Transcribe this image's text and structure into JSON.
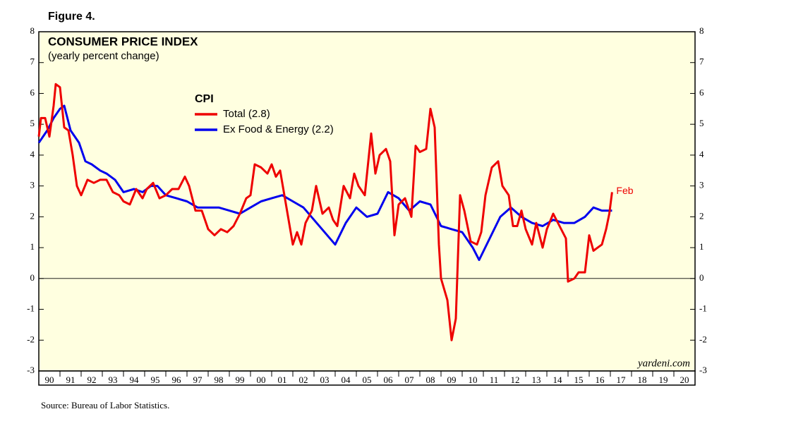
{
  "figure_label": "Figure 4.",
  "chart_data": {
    "type": "line",
    "title": "CONSUMER PRICE INDEX",
    "subtitle": "(yearly percent change)",
    "legend_title": "CPI",
    "annotation": "Feb",
    "watermark": "yardeni.com",
    "source": "Source: Bureau of Labor Statistics.",
    "xlim": [
      1990,
      2021
    ],
    "xticks": [
      {
        "value": 1990,
        "label": "90"
      },
      {
        "value": 1991,
        "label": "91"
      },
      {
        "value": 1992,
        "label": "92"
      },
      {
        "value": 1993,
        "label": "93"
      },
      {
        "value": 1994,
        "label": "94"
      },
      {
        "value": 1995,
        "label": "95"
      },
      {
        "value": 1996,
        "label": "96"
      },
      {
        "value": 1997,
        "label": "97"
      },
      {
        "value": 1998,
        "label": "98"
      },
      {
        "value": 1999,
        "label": "99"
      },
      {
        "value": 2000,
        "label": "00"
      },
      {
        "value": 2001,
        "label": "01"
      },
      {
        "value": 2002,
        "label": "02"
      },
      {
        "value": 2003,
        "label": "03"
      },
      {
        "value": 2004,
        "label": "04"
      },
      {
        "value": 2005,
        "label": "05"
      },
      {
        "value": 2006,
        "label": "06"
      },
      {
        "value": 2007,
        "label": "07"
      },
      {
        "value": 2008,
        "label": "08"
      },
      {
        "value": 2009,
        "label": "09"
      },
      {
        "value": 2010,
        "label": "10"
      },
      {
        "value": 2011,
        "label": "11"
      },
      {
        "value": 2012,
        "label": "12"
      },
      {
        "value": 2013,
        "label": "13"
      },
      {
        "value": 2014,
        "label": "14"
      },
      {
        "value": 2015,
        "label": "15"
      },
      {
        "value": 2016,
        "label": "16"
      },
      {
        "value": 2017,
        "label": "17"
      },
      {
        "value": 2018,
        "label": "18"
      },
      {
        "value": 2019,
        "label": "19"
      },
      {
        "value": 2020,
        "label": "20"
      }
    ],
    "ylim": [
      -3,
      8
    ],
    "yticks": [
      -3,
      -2,
      -1,
      0,
      1,
      2,
      3,
      4,
      5,
      6,
      7,
      8
    ],
    "series": [
      {
        "name": "Total (2.8)",
        "color": "#ee0000",
        "x": [
          1990.0,
          1990.1,
          1990.3,
          1990.5,
          1990.7,
          1990.8,
          1991.0,
          1991.2,
          1991.4,
          1991.6,
          1991.8,
          1992.0,
          1992.3,
          1992.6,
          1992.9,
          1993.2,
          1993.5,
          1993.8,
          1994.0,
          1994.3,
          1994.6,
          1994.9,
          1995.1,
          1995.4,
          1995.7,
          1996.0,
          1996.3,
          1996.6,
          1996.9,
          1997.1,
          1997.4,
          1997.7,
          1998.0,
          1998.3,
          1998.6,
          1998.9,
          1999.2,
          1999.5,
          1999.8,
          2000.0,
          2000.2,
          2000.5,
          2000.8,
          2001.0,
          2001.2,
          2001.4,
          2001.6,
          2001.8,
          2002.0,
          2002.2,
          2002.4,
          2002.6,
          2002.9,
          2003.1,
          2003.4,
          2003.7,
          2003.9,
          2004.1,
          2004.4,
          2004.7,
          2004.9,
          2005.1,
          2005.4,
          2005.7,
          2005.9,
          2006.1,
          2006.4,
          2006.6,
          2006.8,
          2007.0,
          2007.3,
          2007.6,
          2007.8,
          2008.0,
          2008.3,
          2008.5,
          2008.7,
          2008.9,
          2009.0,
          2009.3,
          2009.5,
          2009.7,
          2009.9,
          2010.1,
          2010.4,
          2010.7,
          2010.9,
          2011.1,
          2011.4,
          2011.7,
          2011.9,
          2012.2,
          2012.4,
          2012.6,
          2012.8,
          2013.0,
          2013.3,
          2013.5,
          2013.8,
          2014.0,
          2014.3,
          2014.6,
          2014.9,
          2015.0,
          2015.3,
          2015.5,
          2015.8,
          2016.0,
          2016.2,
          2016.4,
          2016.6,
          2016.8,
          2016.95,
          2017.08
        ],
        "values": [
          4.6,
          5.2,
          5.2,
          4.6,
          5.6,
          6.3,
          6.2,
          4.9,
          4.8,
          4.0,
          3.0,
          2.7,
          3.2,
          3.1,
          3.2,
          3.2,
          2.8,
          2.7,
          2.5,
          2.4,
          2.9,
          2.6,
          2.9,
          3.1,
          2.6,
          2.7,
          2.9,
          2.9,
          3.3,
          3.0,
          2.2,
          2.2,
          1.6,
          1.4,
          1.6,
          1.5,
          1.7,
          2.1,
          2.6,
          2.7,
          3.7,
          3.6,
          3.4,
          3.7,
          3.3,
          3.5,
          2.7,
          1.9,
          1.1,
          1.5,
          1.1,
          1.8,
          2.2,
          3.0,
          2.1,
          2.3,
          1.9,
          1.7,
          3.0,
          2.6,
          3.4,
          3.0,
          2.7,
          4.7,
          3.4,
          4.0,
          4.2,
          3.8,
          1.4,
          2.4,
          2.6,
          2.0,
          4.3,
          4.1,
          4.2,
          5.5,
          4.9,
          1.1,
          0.0,
          -0.7,
          -2.0,
          -1.3,
          2.7,
          2.2,
          1.2,
          1.1,
          1.5,
          2.7,
          3.6,
          3.8,
          3.0,
          2.7,
          1.7,
          1.7,
          2.2,
          1.6,
          1.1,
          1.8,
          1.0,
          1.6,
          2.1,
          1.7,
          1.3,
          -0.1,
          0.0,
          0.2,
          0.2,
          1.4,
          0.9,
          1.0,
          1.1,
          1.6,
          2.1,
          2.8
        ]
      },
      {
        "name": "Ex Food & Energy (2.2)",
        "color": "#0000ee",
        "x": [
          1990.0,
          1990.4,
          1990.7,
          1991.0,
          1991.2,
          1991.5,
          1991.9,
          1992.2,
          1992.5,
          1992.9,
          1993.2,
          1993.6,
          1994.0,
          1994.5,
          1994.9,
          1995.3,
          1995.6,
          1996.0,
          1996.5,
          1997.0,
          1997.5,
          1998.0,
          1998.5,
          1999.0,
          1999.5,
          2000.0,
          2000.5,
          2001.0,
          2001.5,
          2002.0,
          2002.5,
          2003.0,
          2003.5,
          2004.0,
          2004.5,
          2005.0,
          2005.5,
          2006.0,
          2006.5,
          2007.0,
          2007.5,
          2008.0,
          2008.5,
          2009.0,
          2009.5,
          2010.0,
          2010.5,
          2010.8,
          2011.3,
          2011.8,
          2012.3,
          2012.8,
          2013.3,
          2013.8,
          2014.3,
          2014.8,
          2015.3,
          2015.8,
          2016.2,
          2016.6,
          2017.08
        ],
        "values": [
          4.4,
          4.8,
          5.2,
          5.5,
          5.6,
          4.8,
          4.4,
          3.8,
          3.7,
          3.5,
          3.4,
          3.2,
          2.8,
          2.9,
          2.8,
          3.0,
          3.0,
          2.7,
          2.6,
          2.5,
          2.3,
          2.3,
          2.3,
          2.2,
          2.1,
          2.3,
          2.5,
          2.6,
          2.7,
          2.5,
          2.3,
          1.9,
          1.5,
          1.1,
          1.8,
          2.3,
          2.0,
          2.1,
          2.8,
          2.6,
          2.2,
          2.5,
          2.4,
          1.7,
          1.6,
          1.5,
          1.0,
          0.6,
          1.3,
          2.0,
          2.3,
          2.0,
          1.8,
          1.7,
          1.9,
          1.8,
          1.8,
          2.0,
          2.3,
          2.2,
          2.2
        ]
      }
    ]
  }
}
